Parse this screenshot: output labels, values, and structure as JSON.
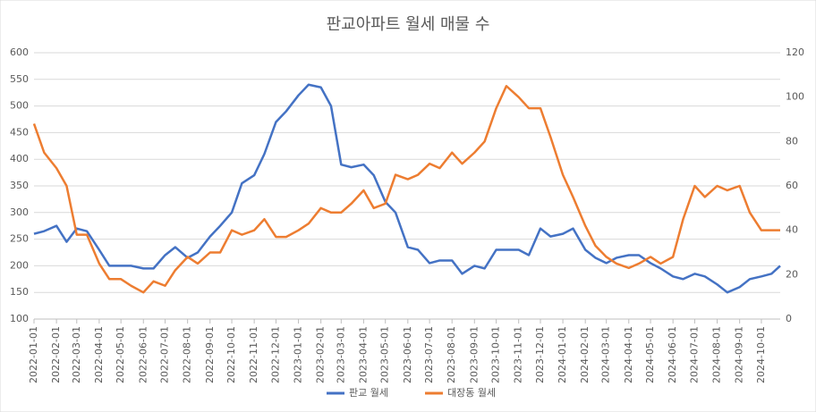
{
  "chart_data": {
    "type": "line",
    "title": "판교아파트 월세 매물 수",
    "x": [
      "2022-01-01",
      "2022-01-15",
      "2022-02-01",
      "2022-02-15",
      "2022-03-01",
      "2022-03-15",
      "2022-04-01",
      "2022-04-15",
      "2022-05-01",
      "2022-05-15",
      "2022-06-01",
      "2022-06-15",
      "2022-07-01",
      "2022-07-15",
      "2022-08-01",
      "2022-08-15",
      "2022-09-01",
      "2022-09-15",
      "2022-10-01",
      "2022-10-15",
      "2022-11-01",
      "2022-11-15",
      "2022-12-01",
      "2022-12-15",
      "2023-01-01",
      "2023-01-15",
      "2023-02-01",
      "2023-02-15",
      "2023-03-01",
      "2023-03-15",
      "2023-04-01",
      "2023-04-15",
      "2023-05-01",
      "2023-05-15",
      "2023-06-01",
      "2023-06-15",
      "2023-07-01",
      "2023-07-15",
      "2023-08-01",
      "2023-08-15",
      "2023-09-01",
      "2023-09-15",
      "2023-10-01",
      "2023-10-15",
      "2023-11-01",
      "2023-11-15",
      "2023-12-01",
      "2023-12-15",
      "2024-01-01",
      "2024-01-15",
      "2024-02-01",
      "2024-02-15",
      "2024-03-01",
      "2024-03-15",
      "2024-04-01",
      "2024-04-15",
      "2024-05-01",
      "2024-05-15",
      "2024-06-01",
      "2024-06-15",
      "2024-07-01",
      "2024-07-15",
      "2024-08-01",
      "2024-08-15",
      "2024-09-01",
      "2024-09-15",
      "2024-10-01",
      "2024-10-15",
      "2024-10-27"
    ],
    "series": [
      {
        "name": "판교 월세",
        "color": "#4472c4",
        "values": [
          260,
          265,
          275,
          245,
          270,
          265,
          230,
          200,
          200,
          200,
          195,
          195,
          220,
          235,
          215,
          225,
          255,
          275,
          300,
          355,
          370,
          410,
          470,
          490,
          520,
          540,
          535,
          500,
          390,
          385,
          390,
          370,
          320,
          300,
          235,
          230,
          205,
          210,
          210,
          185,
          200,
          195,
          230,
          230,
          230,
          220,
          270,
          255,
          260,
          270,
          230,
          215,
          205,
          215,
          220,
          220,
          205,
          195,
          180,
          175,
          185,
          180,
          165,
          150,
          160,
          175,
          180,
          185,
          200
        ]
      },
      {
        "name": "대장동 월세",
        "color": "#ed7d31",
        "axis": "y2",
        "values": [
          88,
          75,
          68,
          60,
          38,
          38,
          25,
          18,
          18,
          15,
          12,
          17,
          15,
          22,
          28,
          25,
          30,
          30,
          40,
          38,
          40,
          45,
          37,
          37,
          40,
          43,
          50,
          48,
          48,
          52,
          58,
          50,
          52,
          65,
          63,
          65,
          70,
          68,
          75,
          70,
          75,
          80,
          95,
          105,
          100,
          95,
          95,
          82,
          65,
          55,
          42,
          33,
          28,
          25,
          23,
          25,
          28,
          25,
          28,
          45,
          60,
          55,
          60,
          58,
          60,
          48,
          40,
          40,
          40
        ]
      }
    ],
    "xlim": [
      "2022-01-01",
      "2024-10-27"
    ],
    "xticks": [
      "2022-01-01",
      "2022-02-01",
      "2022-03-01",
      "2022-04-01",
      "2022-05-01",
      "2022-06-01",
      "2022-07-01",
      "2022-08-01",
      "2022-09-01",
      "2022-10-01",
      "2022-11-01",
      "2022-12-01",
      "2023-01-01",
      "2023-02-01",
      "2023-03-01",
      "2023-04-01",
      "2023-05-01",
      "2023-06-01",
      "2023-07-01",
      "2023-08-01",
      "2023-09-01",
      "2023-10-01",
      "2023-11-01",
      "2023-12-01",
      "2024-01-01",
      "2024-02-01",
      "2024-03-01",
      "2024-04-01",
      "2024-05-01",
      "2024-06-01",
      "2024-07-01",
      "2024-08-01",
      "2024-09-01",
      "2024-10-01"
    ],
    "ylim": [
      100,
      600
    ],
    "yticks": [
      100,
      150,
      200,
      250,
      300,
      350,
      400,
      450,
      500,
      550,
      600
    ],
    "y2lim": [
      0,
      120
    ],
    "y2ticks": [
      0,
      20,
      40,
      60,
      80,
      100,
      120
    ],
    "grid": true,
    "legend": "bottom"
  }
}
